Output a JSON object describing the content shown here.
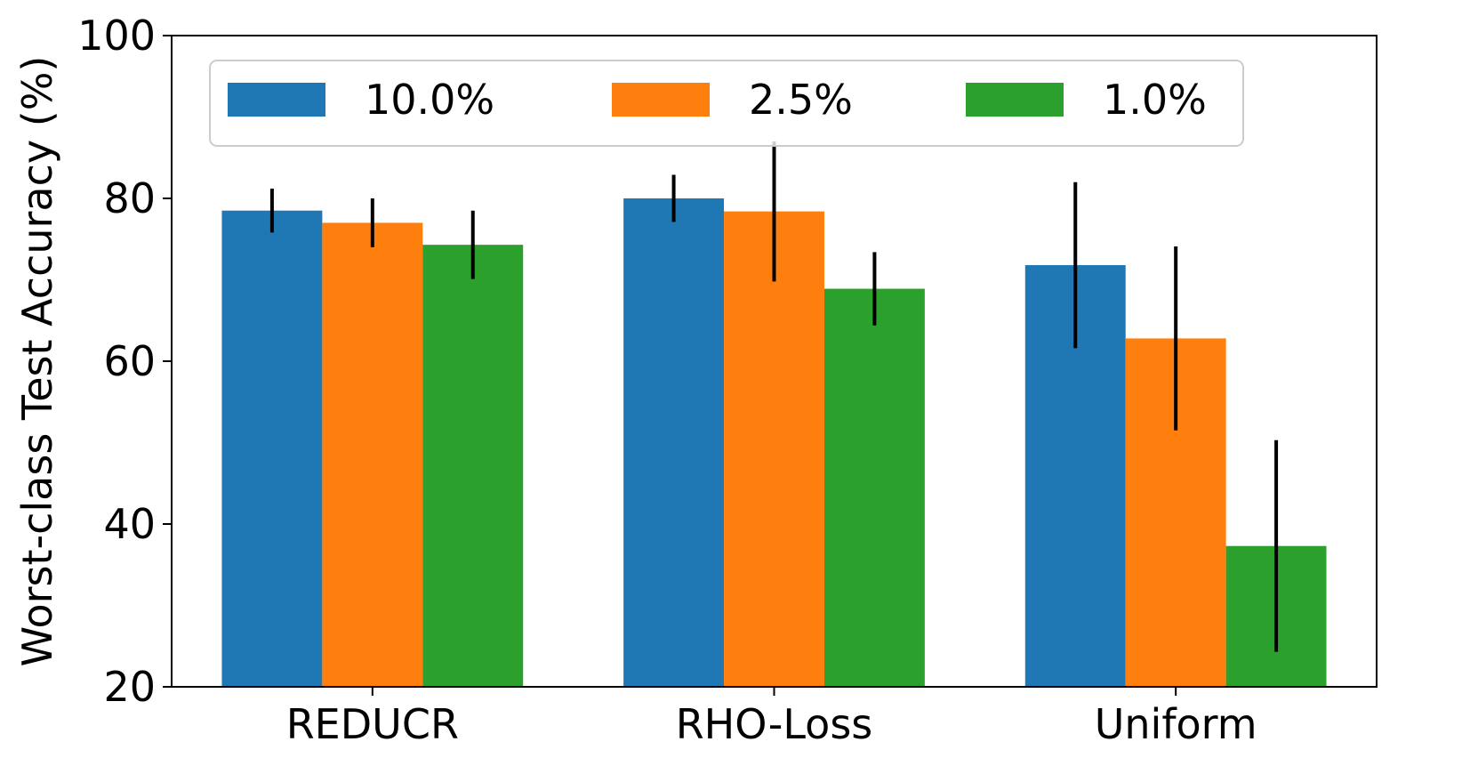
{
  "chart_data": {
    "type": "bar",
    "title": "",
    "xlabel": "",
    "ylabel": "Worst-class Test Accuracy (%)",
    "ylim": [
      20,
      100
    ],
    "yticks": [
      "20",
      "40",
      "60",
      "80",
      "100"
    ],
    "categories": [
      "REDUCR",
      "RHO-Loss",
      "Uniform"
    ],
    "series": [
      {
        "name": "10.0%",
        "color": "#1f77b4",
        "values": [
          78.5,
          80.0,
          71.8
        ],
        "errors": [
          2.7,
          2.9,
          10.2
        ]
      },
      {
        "name": "2.5%",
        "color": "#ff7f0e",
        "values": [
          77.0,
          78.4,
          62.8
        ],
        "errors": [
          3.0,
          8.6,
          11.3
        ]
      },
      {
        "name": "1.0%",
        "color": "#2ca02c",
        "values": [
          74.3,
          68.9,
          37.3
        ],
        "errors": [
          4.2,
          4.5,
          13.0
        ]
      }
    ],
    "error_bar_color": "#000000",
    "legend_position": "top-left",
    "grid": false
  }
}
